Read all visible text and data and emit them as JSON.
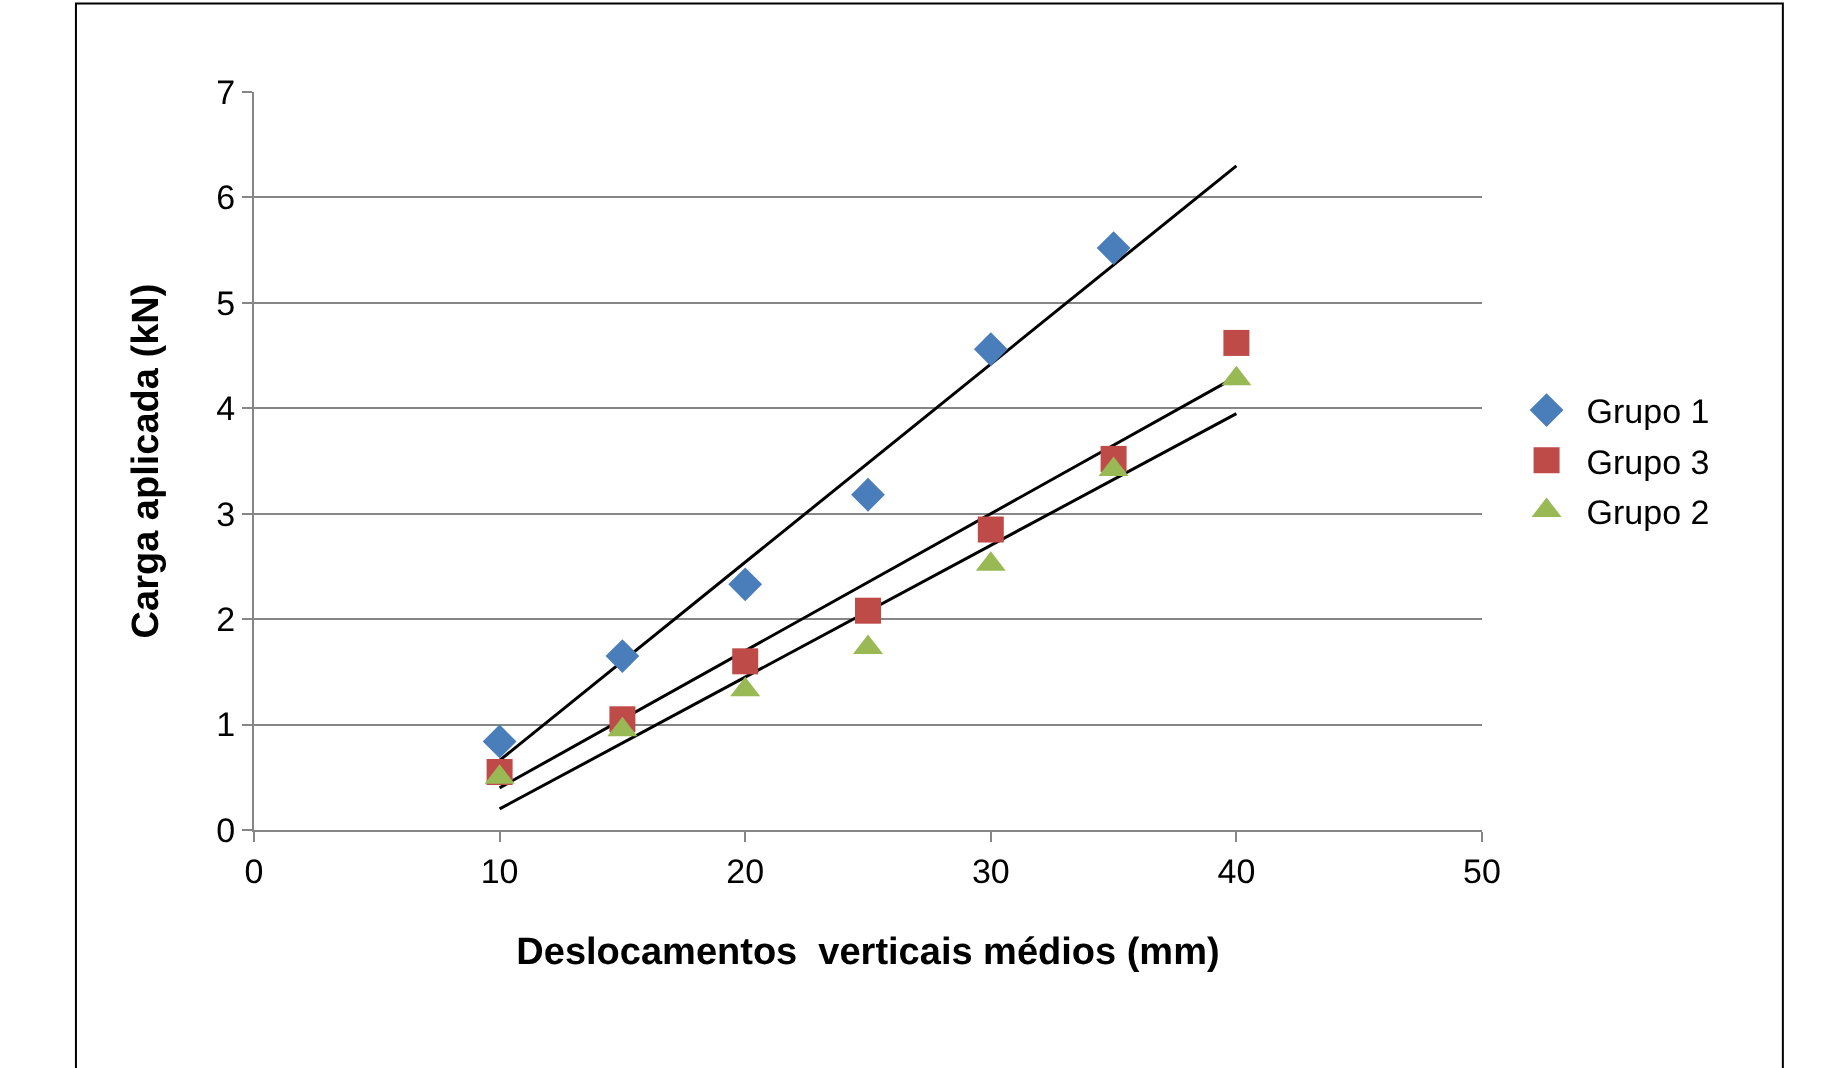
{
  "chart_data": {
    "type": "scatter",
    "xlabel": "Deslocamentos  verticais médios (mm)",
    "ylabel": "Carga aplicada (kN)",
    "xlim": [
      0,
      50
    ],
    "xticks": [
      0,
      10,
      20,
      30,
      40,
      50
    ],
    "ylim": [
      0,
      7
    ],
    "yticks": [
      0,
      1,
      2,
      3,
      4,
      5,
      6,
      7
    ],
    "grid": "y",
    "legend": "right",
    "series": [
      {
        "name": "Grupo 1",
        "color": "#4a7ebb",
        "marker": "diamond",
        "x": [
          10,
          15,
          20,
          25,
          30,
          35
        ],
        "values": [
          0.84,
          1.65,
          2.33,
          3.18,
          4.56,
          5.52
        ]
      },
      {
        "name": "Grupo 3",
        "color": "#be4b48",
        "marker": "square",
        "x": [
          10,
          15,
          20,
          25,
          30,
          35,
          40
        ],
        "values": [
          0.55,
          1.05,
          1.6,
          2.08,
          2.85,
          3.52,
          4.62
        ]
      },
      {
        "name": "Grupo 2",
        "color": "#98b954",
        "marker": "triangle",
        "x": [
          10,
          15,
          20,
          25,
          30,
          35,
          40
        ],
        "values": [
          0.5,
          0.95,
          1.33,
          1.73,
          2.52,
          3.42,
          4.28
        ]
      },
      {
        "type": "line",
        "color": "#000000",
        "marker": "none",
        "x": [
          10,
          40
        ],
        "values": [
          0.66,
          6.3
        ]
      },
      {
        "type": "line",
        "color": "#000000",
        "marker": "none",
        "x": [
          10,
          40
        ],
        "values": [
          0.4,
          4.3
        ]
      },
      {
        "type": "line",
        "color": "#000000",
        "marker": "none",
        "x": [
          10,
          40
        ],
        "values": [
          0.2,
          3.95
        ]
      }
    ]
  }
}
